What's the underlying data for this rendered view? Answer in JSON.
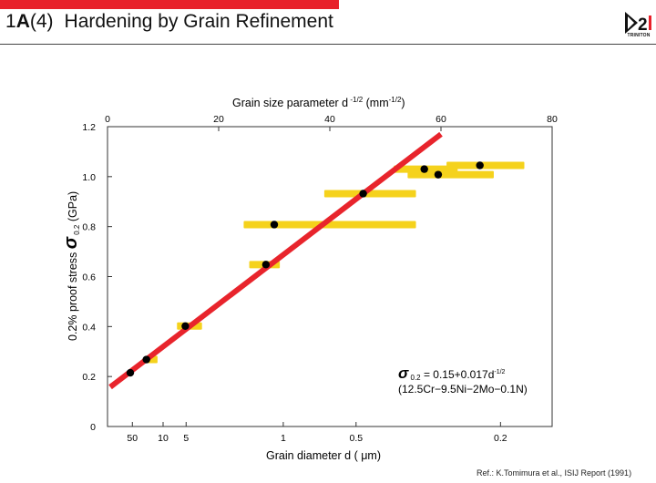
{
  "header": {
    "section_num": "1",
    "section_letter": "A",
    "section_sub": "(4)",
    "title": "Hardening by Grain Refinement",
    "logo_text": "TRINITON",
    "accent_color": "#e8202a"
  },
  "chart_data": {
    "type": "scatter",
    "xlabel_top": "Grain size parameter  d",
    "xlabel_top_exp": "-1/2",
    "xlabel_top_unit": "(mm",
    "xlabel_top_unit_exp": "-1/2",
    "xlabel_top_close": ")",
    "xlabel_bottom": "Grain diameter  d ( μm)",
    "ylabel": "0.2% proof stress",
    "ylabel_symbol": "σ",
    "ylabel_sub": "0.2",
    "ylabel_unit": "(GPa)",
    "xlim": [
      0,
      80
    ],
    "ylim": [
      0,
      1.2
    ],
    "top_ticks": [
      {
        "value": 0,
        "label": "0"
      },
      {
        "value": 20,
        "label": "20"
      },
      {
        "value": 40,
        "label": "40"
      },
      {
        "value": 60,
        "label": "60"
      },
      {
        "value": 80,
        "label": "80"
      }
    ],
    "y_ticks": [
      {
        "value": 0,
        "label": "0"
      },
      {
        "value": 0.2,
        "label": "0.2"
      },
      {
        "value": 0.4,
        "label": "0.4"
      },
      {
        "value": 0.6,
        "label": "0.6"
      },
      {
        "value": 0.8,
        "label": "0.8"
      },
      {
        "value": 1.0,
        "label": "1.0"
      },
      {
        "value": 1.2,
        "label": "1.2"
      }
    ],
    "bottom_ticks": [
      {
        "value": 4.472,
        "label": "50"
      },
      {
        "value": 10.0,
        "label": "10"
      },
      {
        "value": 14.142,
        "label": "5"
      },
      {
        "value": 31.623,
        "label": "1"
      },
      {
        "value": 44.721,
        "label": "0.5"
      },
      {
        "value": 70.711,
        "label": "0.2"
      }
    ],
    "points": [
      {
        "x": 4.1,
        "y": 0.215
      },
      {
        "x": 7.0,
        "y": 0.268,
        "xerr": [
          7.0,
          9.0
        ]
      },
      {
        "x": 14.0,
        "y": 0.402,
        "xerr": [
          12.5,
          17.0
        ]
      },
      {
        "x": 28.5,
        "y": 0.648,
        "xerr": [
          25.5,
          31.0
        ]
      },
      {
        "x": 30.0,
        "y": 0.808,
        "xerr": [
          24.5,
          55.5
        ]
      },
      {
        "x": 46.0,
        "y": 0.932,
        "xerr": [
          39.0,
          55.5
        ]
      },
      {
        "x": 57.0,
        "y": 1.03,
        "xerr": [
          51.5,
          63.0
        ]
      },
      {
        "x": 59.5,
        "y": 1.008,
        "xerr": [
          54.0,
          69.5
        ]
      },
      {
        "x": 67.0,
        "y": 1.045,
        "xerr": [
          61.0,
          75.0
        ]
      }
    ],
    "fit_line": {
      "x": [
        0.5,
        60.0
      ],
      "y": [
        0.158,
        1.17
      ],
      "color": "#e8242c"
    },
    "point_color": "#000000",
    "band_color": "#f5d21c",
    "equation": {
      "sigma": "σ",
      "sub": "0.2",
      "text": " = 0.15+0.017d",
      "exp": "-1/2",
      "composition": "(12.5Cr−9.5Ni−2Mo−0.1N)"
    }
  },
  "reference": "Ref.:  K.Tomimura et al.,  ISIJ Report (1991)"
}
